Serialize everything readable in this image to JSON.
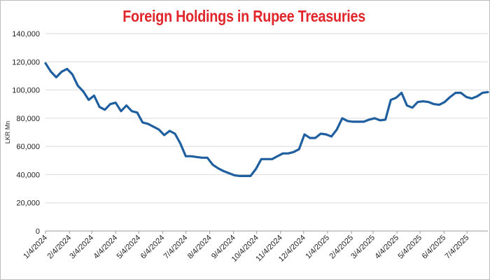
{
  "chart_data": {
    "type": "line",
    "title": "Foreign Holdings in Rupee Treasuries",
    "ylabel": "LKR Mn",
    "xlabel": "",
    "ylim": [
      0,
      140000
    ],
    "y_ticks": [
      "0",
      "20,000",
      "40,000",
      "60,000",
      "80,000",
      "100,000",
      "120,000",
      "140,000"
    ],
    "x_ticks": [
      "1/4/2024",
      "2/4/2024",
      "3/4/2024",
      "4/4/2024",
      "5/4/2024",
      "6/4/2024",
      "7/4/2024",
      "8/4/2024",
      "9/4/2024",
      "10/4/2024",
      "11/4/2024",
      "12/4/2024",
      "1/4/2025",
      "2/4/2025",
      "3/4/2025",
      "4/4/2025",
      "5/4/2025",
      "6/4/2025",
      "7/4/2025"
    ],
    "grid": "horizontal",
    "legend": "none",
    "line_color": "#1f5f9f",
    "series": [
      {
        "x": [
          "2024-01-04",
          "2024-01-11",
          "2024-01-18",
          "2024-01-25",
          "2024-02-01",
          "2024-02-08",
          "2024-02-15",
          "2024-02-22",
          "2024-02-29",
          "2024-03-07",
          "2024-03-14",
          "2024-03-21",
          "2024-03-28",
          "2024-04-04",
          "2024-04-11",
          "2024-04-18",
          "2024-04-25",
          "2024-05-02",
          "2024-05-09",
          "2024-05-16",
          "2024-05-23",
          "2024-05-30",
          "2024-06-06",
          "2024-06-13",
          "2024-06-20",
          "2024-06-27",
          "2024-07-04",
          "2024-07-11",
          "2024-07-18",
          "2024-07-25",
          "2024-08-01",
          "2024-08-08",
          "2024-08-15",
          "2024-08-22",
          "2024-08-29",
          "2024-09-05",
          "2024-09-12",
          "2024-09-19",
          "2024-09-26",
          "2024-10-03",
          "2024-10-10",
          "2024-10-17",
          "2024-10-24",
          "2024-10-31",
          "2024-11-07",
          "2024-11-14",
          "2024-11-21",
          "2024-11-28",
          "2024-12-05",
          "2024-12-12",
          "2024-12-19",
          "2024-12-26",
          "2025-01-02",
          "2025-01-09",
          "2025-01-16",
          "2025-01-23",
          "2025-01-30",
          "2025-02-06",
          "2025-02-13",
          "2025-02-20",
          "2025-02-27",
          "2025-03-06",
          "2025-03-13",
          "2025-03-20",
          "2025-03-27",
          "2025-04-03",
          "2025-04-10",
          "2025-04-17",
          "2025-04-24",
          "2025-05-01",
          "2025-05-08",
          "2025-05-15",
          "2025-05-22",
          "2025-05-29",
          "2025-06-05",
          "2025-06-12",
          "2025-06-19",
          "2025-06-26",
          "2025-07-03",
          "2025-07-10",
          "2025-07-17",
          "2025-07-24",
          "2025-07-31"
        ],
        "values": [
          119000,
          113000,
          109000,
          113000,
          115000,
          111000,
          103000,
          99000,
          93000,
          96000,
          88000,
          86000,
          90000,
          91000,
          85000,
          89000,
          85000,
          84000,
          77000,
          76000,
          74000,
          72000,
          68000,
          71000,
          69000,
          62000,
          53000,
          53000,
          52500,
          52000,
          52000,
          47000,
          44500,
          42500,
          41000,
          39500,
          39000,
          39000,
          39000,
          44000,
          51000,
          51000,
          51000,
          53000,
          55000,
          55000,
          56000,
          58000,
          68500,
          66000,
          66000,
          69000,
          68500,
          67000,
          72000,
          80000,
          78000,
          77500,
          77500,
          77500,
          79000,
          80000,
          78500,
          79000,
          93000,
          94500,
          98000,
          89000,
          87500,
          91500,
          92000,
          91500,
          90000,
          89500,
          91500,
          95000,
          98000,
          98000,
          95000,
          94000,
          95500,
          98000,
          98500
        ]
      }
    ]
  }
}
